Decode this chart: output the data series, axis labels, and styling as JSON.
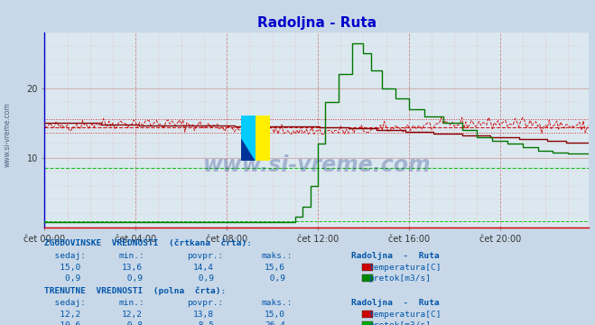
{
  "title": "Radoljna - Ruta",
  "title_color": "#0000cc",
  "bg_color": "#c8d8e8",
  "plot_bg_color": "#dce8f0",
  "xlim": [
    0,
    287
  ],
  "ylim": [
    0,
    28
  ],
  "yticks": [
    10,
    20
  ],
  "xtick_labels": [
    "čet 00:00",
    "čet 04:00",
    "čet 08:00",
    "čet 12:00",
    "čet 16:00",
    "čet 20:00"
  ],
  "xtick_positions": [
    0,
    48,
    96,
    144,
    192,
    240
  ],
  "watermark": "www.si-vreme.com",
  "watermark_color": "#1e3a8a",
  "temp_hist_color": "#cc0000",
  "temp_curr_color": "#880000",
  "flow_hist_color": "#00bb00",
  "flow_curr_color": "#007700",
  "hist_avg_temp": 14.4,
  "hist_min_temp": 13.6,
  "hist_max_temp": 15.6,
  "hist_avg_flow": 8.5,
  "curr_sedaj_temp": 12.2,
  "curr_min_temp": 12.2,
  "curr_avg_temp": 13.8,
  "curr_max_temp": 15.0,
  "curr_sedaj_flow": 10.6,
  "curr_min_flow": 0.8,
  "curr_avg_flow": 8.5,
  "curr_max_flow": 26.4,
  "text_color": "#0055aa",
  "station_name": "Radoljna - Ruta"
}
